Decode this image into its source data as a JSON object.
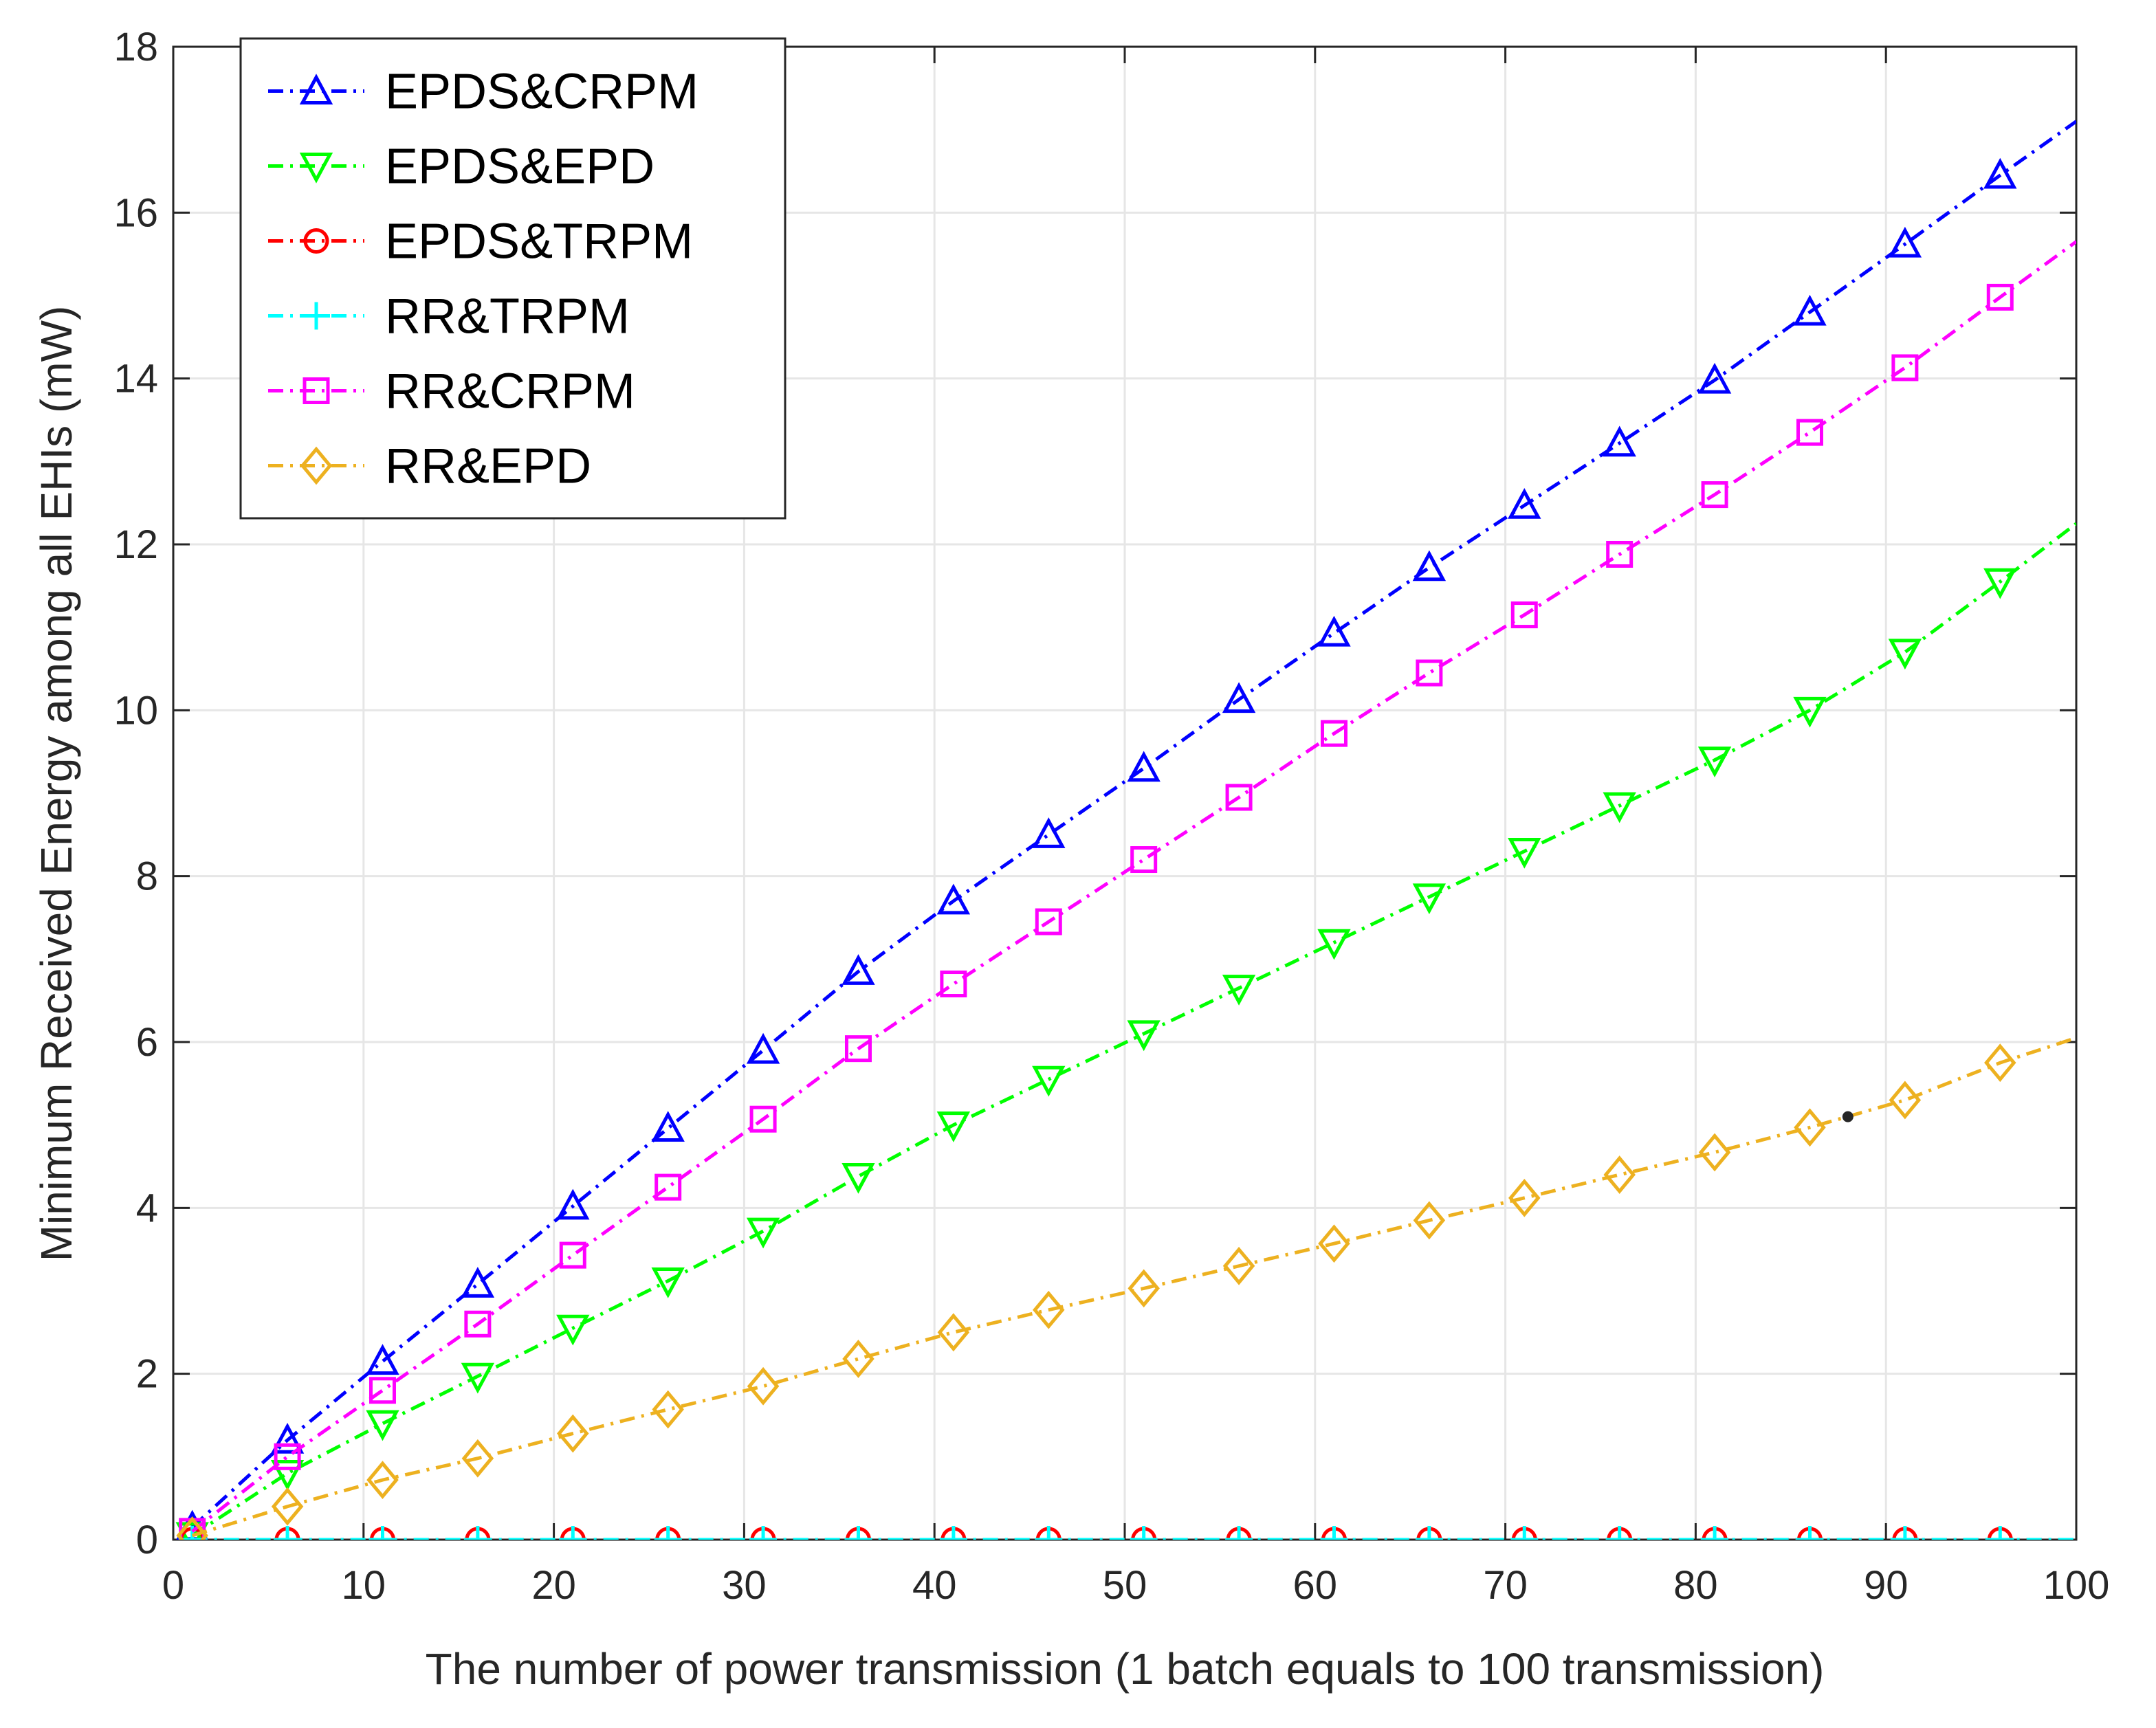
{
  "chart_data": {
    "type": "line",
    "title": "",
    "xlabel": "The number of power transmission (1 batch equals to 100 transmission)",
    "ylabel": "Minimum Received Energy among all EHIs (mW)",
    "xlim": [
      0,
      100
    ],
    "ylim": [
      0,
      18
    ],
    "xticks": [
      0,
      10,
      20,
      30,
      40,
      50,
      60,
      70,
      80,
      90,
      100
    ],
    "yticks": [
      0,
      2,
      4,
      6,
      8,
      10,
      12,
      14,
      16,
      18
    ],
    "grid": true,
    "legend_position": "top-left",
    "series": [
      {
        "name": "EPDS&CRPM",
        "color": "#0000ff",
        "marker": "triangle-up",
        "x": [
          1,
          6,
          11,
          16,
          21,
          26,
          31,
          36,
          41,
          46,
          51,
          56,
          61,
          66,
          71,
          76,
          81,
          86,
          91,
          96,
          100
        ],
        "values": [
          0.15,
          1.2,
          2.15,
          3.08,
          4.02,
          4.96,
          5.9,
          6.85,
          7.7,
          8.5,
          9.3,
          10.13,
          10.93,
          11.72,
          12.47,
          13.22,
          13.98,
          14.8,
          15.62,
          16.45,
          17.1
        ]
      },
      {
        "name": "EPDS&EPD",
        "color": "#00ff00",
        "marker": "triangle-down",
        "x": [
          1,
          6,
          11,
          16,
          21,
          26,
          31,
          36,
          41,
          46,
          51,
          56,
          61,
          66,
          71,
          76,
          81,
          86,
          91,
          96,
          100
        ],
        "values": [
          0.05,
          0.8,
          1.4,
          1.97,
          2.55,
          3.12,
          3.72,
          4.38,
          5.0,
          5.55,
          6.1,
          6.65,
          7.2,
          7.75,
          8.3,
          8.85,
          9.4,
          10.0,
          10.7,
          11.55,
          12.25
        ]
      },
      {
        "name": "EPDS&TRPM",
        "color": "#ff0000",
        "marker": "circle",
        "x": [
          1,
          6,
          11,
          16,
          21,
          26,
          31,
          36,
          41,
          46,
          51,
          56,
          61,
          66,
          71,
          76,
          81,
          86,
          91,
          96,
          100
        ],
        "values": [
          0,
          0,
          0,
          0,
          0,
          0,
          0,
          0,
          0,
          0,
          0,
          0,
          0,
          0,
          0,
          0,
          0,
          0,
          0,
          0,
          0
        ]
      },
      {
        "name": "RR&TRPM",
        "color": "#00ffff",
        "marker": "plus",
        "x": [
          1,
          6,
          11,
          16,
          21,
          26,
          31,
          36,
          41,
          46,
          51,
          56,
          61,
          66,
          71,
          76,
          81,
          86,
          91,
          96,
          100
        ],
        "values": [
          0,
          0,
          0,
          0,
          0,
          0,
          0,
          0,
          0,
          0,
          0,
          0,
          0,
          0,
          0,
          0,
          0,
          0,
          0,
          0,
          0
        ]
      },
      {
        "name": "RR&CRPM",
        "color": "#ff00ff",
        "marker": "square",
        "x": [
          1,
          6,
          11,
          16,
          21,
          26,
          31,
          36,
          41,
          46,
          51,
          56,
          61,
          66,
          71,
          76,
          81,
          86,
          91,
          96,
          100
        ],
        "values": [
          0.1,
          1.0,
          1.8,
          2.6,
          3.43,
          4.25,
          5.07,
          5.92,
          6.7,
          7.45,
          8.2,
          8.95,
          9.72,
          10.45,
          11.15,
          11.88,
          12.6,
          13.35,
          14.13,
          14.98,
          15.65
        ]
      },
      {
        "name": "RR&EPD",
        "color": "#edb120",
        "marker": "diamond",
        "x": [
          1,
          6,
          11,
          16,
          21,
          26,
          31,
          36,
          41,
          46,
          51,
          56,
          61,
          66,
          71,
          76,
          81,
          86,
          91,
          96,
          100
        ],
        "values": [
          0.05,
          0.4,
          0.72,
          0.98,
          1.28,
          1.57,
          1.85,
          2.18,
          2.5,
          2.77,
          3.03,
          3.3,
          3.57,
          3.85,
          4.12,
          4.4,
          4.67,
          4.97,
          5.3,
          5.75,
          6.05
        ]
      }
    ],
    "annotations": [
      {
        "type": "point",
        "x": 88,
        "y": 5.1,
        "color": "#262626"
      }
    ]
  },
  "style": {
    "axis_color": "#262626",
    "grid_color": "#e6e6e6",
    "background": "#ffffff"
  }
}
